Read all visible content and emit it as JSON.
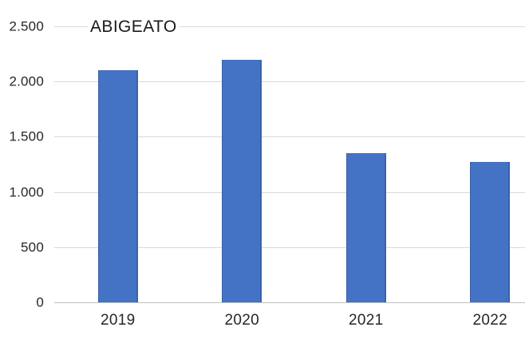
{
  "chart_data": {
    "type": "bar",
    "title": "ABIGEATO",
    "categories": [
      "2019",
      "2020",
      "2021",
      "2022"
    ],
    "values": [
      2100,
      2200,
      1350,
      1270
    ],
    "series": [
      {
        "name": "ABIGEATO",
        "values": [
          2100,
          2200,
          1350,
          1270
        ]
      }
    ],
    "y_ticks": [
      {
        "label": "0",
        "value": 0
      },
      {
        "label": "500",
        "value": 500
      },
      {
        "label": "1.000",
        "value": 1000
      },
      {
        "label": "1.500",
        "value": 1500
      },
      {
        "label": "2.000",
        "value": 2000
      },
      {
        "label": "2.500",
        "value": 2500
      }
    ],
    "ylim": [
      0,
      2500
    ],
    "xlabel": "",
    "ylabel": "",
    "grid": true,
    "legend": false,
    "number_format": "thousands separator is a dot (e.g. 2.500)",
    "colors": {
      "bar_fill": "#4472c4",
      "bar_edge": "#3a63aa",
      "gridline": "#d9d9d9",
      "axis_line": "#bfbfbf",
      "label_text": "#262626",
      "title_text": "#1a1a1a",
      "background": "#ffffff"
    }
  }
}
